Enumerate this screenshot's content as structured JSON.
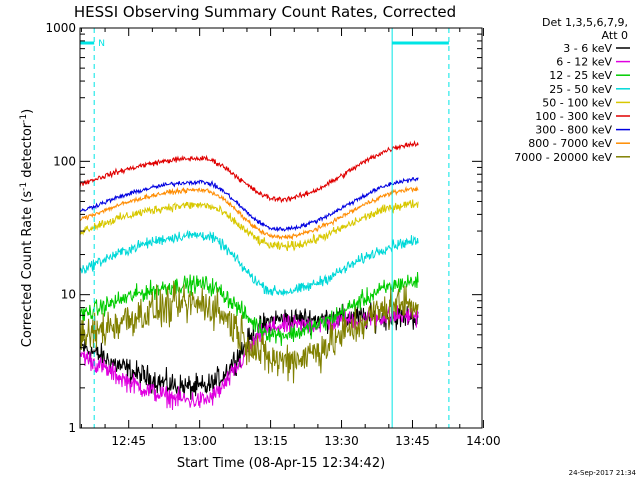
{
  "chart_data": {
    "type": "line",
    "title": "HESSI Observing Summary Count Rates, Corrected",
    "xlabel": "Start Time (08-Apr-15 12:34:42)",
    "ylabel_main": "Corrected Count Rate (s",
    "ylabel_sup1": "-1",
    "ylabel_mid": " detector",
    "ylabel_sup2": "-1",
    "ylabel_end": ")",
    "y_scale": "log",
    "ylim": [
      1,
      1000
    ],
    "xlim_min": [
      0,
      85
    ],
    "y_ticks": [
      "1",
      "10",
      "100",
      "1000"
    ],
    "y_tick_values": [
      1,
      10,
      100,
      1000
    ],
    "x_ticks": [
      "12:45",
      "13:00",
      "13:15",
      "13:30",
      "13:45",
      "14:00"
    ],
    "x_tick_values_min": [
      10.3,
      25.3,
      40.3,
      55.3,
      70.3,
      85.3
    ],
    "legend_header": [
      "Det 1,3,5,6,7,9,",
      "Att 0"
    ],
    "legend_position": "right",
    "timestamp": "24-Sep-2017 21:34",
    "night_marker": "N",
    "cyan_marker_color": "#00e5e5",
    "night_segments_min": [
      [
        -4,
        3
      ],
      [
        66,
        78
      ]
    ],
    "saa_solid_lines_min": [
      -4,
      66
    ],
    "saa_dashed_lines_min": [
      3,
      78
    ],
    "data_window_min": [
      -0.5,
      71.5
    ],
    "series": [
      {
        "name": "3 - 6 keV",
        "color": "#000000",
        "base": 6.5,
        "peak": 2.0,
        "end": 6.8,
        "noise": 0.14
      },
      {
        "name": "6 - 12 keV",
        "color": "#e000e0",
        "base": 5.8,
        "peak": 1.6,
        "end": 7.0,
        "noise": 0.11
      },
      {
        "name": "12 - 25 keV",
        "color": "#00cc00",
        "base": 5.0,
        "peak": 12.0,
        "end": 12.5,
        "noise": 0.1
      },
      {
        "name": "25 - 50 keV",
        "color": "#00d8d8",
        "base": 10.5,
        "peak": 28.0,
        "end": 25.0,
        "noise": 0.06
      },
      {
        "name": "50 - 100 keV",
        "color": "#d8c800",
        "base": 23.0,
        "peak": 47.0,
        "end": 48.0,
        "noise": 0.05
      },
      {
        "name": "100 - 300 keV",
        "color": "#e00000",
        "base": 52.0,
        "peak": 105.0,
        "end": 135.0,
        "noise": 0.03
      },
      {
        "name": "300 - 800 keV",
        "color": "#0000e0",
        "base": 31.0,
        "peak": 70.0,
        "end": 73.0,
        "noise": 0.025
      },
      {
        "name": "800 - 7000 keV",
        "color": "#ff8c00",
        "base": 27.0,
        "peak": 61.0,
        "end": 62.0,
        "noise": 0.025
      },
      {
        "name": "7000 - 20000 keV",
        "color": "#808000",
        "base": 3.2,
        "peak": 8.5,
        "end": 8.8,
        "noise": 0.22
      }
    ]
  }
}
